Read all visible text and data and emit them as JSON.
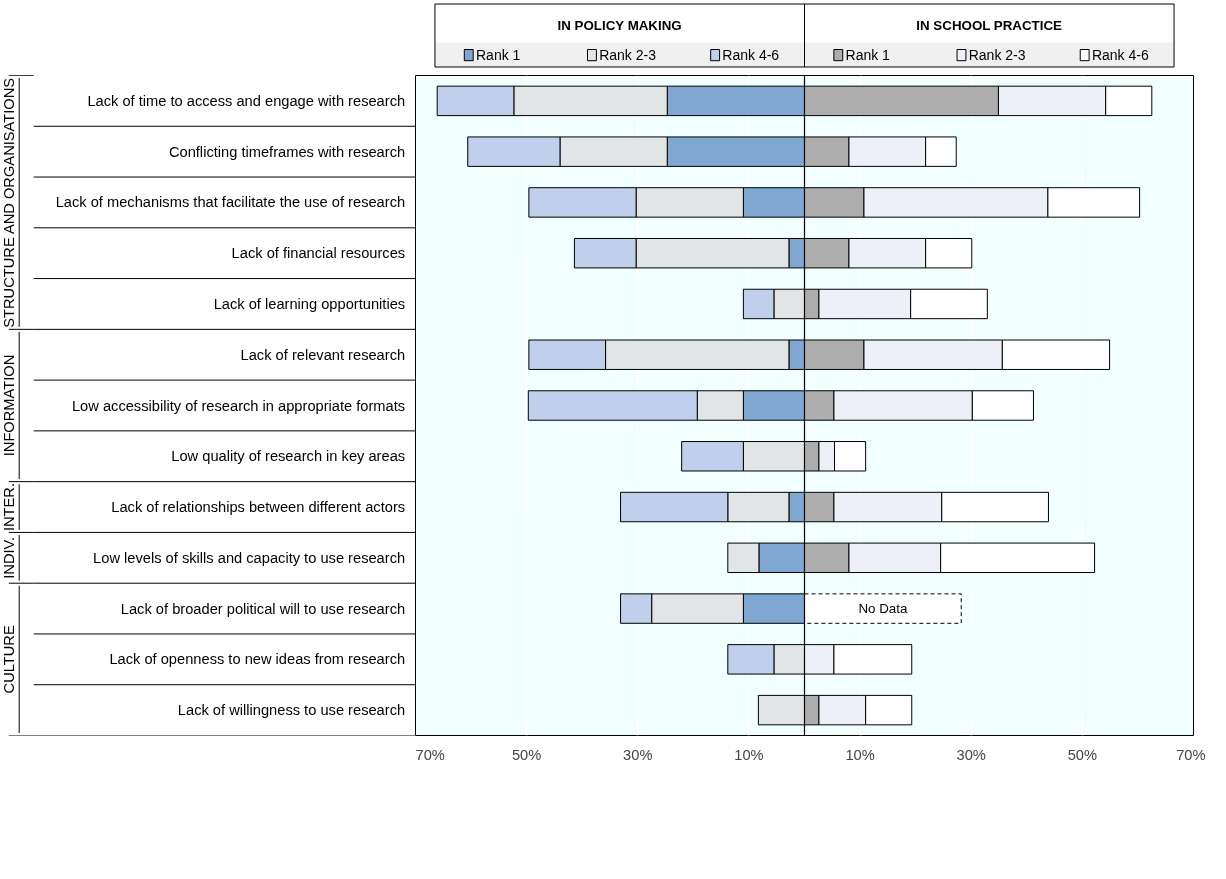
{
  "chart_data": {
    "type": "bar",
    "stacked": true,
    "orientation": "horizontal",
    "categories": [
      "Lack of time to access and engage with research",
      "Conflicting timeframes with research",
      "Lack of mechanisms that facilitate the use of research",
      "Lack of financial resources",
      "Lack of learning opportunities",
      "Lack of relevant research",
      "Low accessibility of research in appropriate formats",
      "Low quality of research in key areas",
      "Lack of relationships between different actors",
      "Low levels of skills and capacity to use research",
      "Lack of broader political will to use research",
      "Lack of openness to new ideas from research",
      "Lack of willingness to use research"
    ],
    "series": [
      {
        "name": "Rank 1",
        "color": "#7fa7d1",
        "values": [
          -24.7,
          -24.7,
          -11.0,
          -2.8,
          0,
          -2.8,
          -11.0,
          0,
          -2.8,
          -8.2,
          -11.0,
          0,
          0
        ]
      },
      {
        "name": "Rank 2-3",
        "color": "#e1e5e5",
        "values": [
          -27.6,
          -19.3,
          -19.3,
          -27.5,
          -5.5,
          -33.0,
          -8.3,
          -11.0,
          -11.0,
          -5.6,
          -16.5,
          -5.5,
          -8.3
        ]
      },
      {
        "name": "Rank 4-6",
        "color": "#bfcfec",
        "values": [
          -13.8,
          -16.6,
          -19.3,
          -11.1,
          -5.5,
          -13.8,
          -30.4,
          -11.1,
          -19.3,
          0,
          -5.6,
          -8.3,
          0
        ]
      },
      {
        "name": "Rank 1",
        "color": "#adadad",
        "values": [
          34.9,
          8.0,
          10.7,
          8.0,
          2.6,
          10.7,
          5.3,
          2.6,
          5.3,
          8.0,
          null,
          0,
          2.6
        ]
      },
      {
        "name": "Rank 2-3",
        "color": "#edf0f8",
        "values": [
          19.3,
          13.8,
          33.1,
          13.8,
          16.5,
          24.9,
          24.9,
          2.8,
          19.4,
          16.5,
          null,
          5.3,
          8.4
        ]
      },
      {
        "name": "Rank 4-6",
        "color": "#ffffff",
        "values": [
          8.3,
          5.5,
          16.5,
          8.3,
          13.8,
          19.3,
          11.0,
          5.6,
          19.2,
          27.7,
          null,
          14.0,
          8.3
        ]
      },
      {
        "name": "No Data",
        "color": "#ffffff",
        "line_style": "dashed",
        "values": [
          null,
          null,
          null,
          null,
          null,
          null,
          null,
          null,
          null,
          null,
          28.2,
          null,
          null
        ]
      }
    ],
    "xlim": [
      -70,
      70
    ],
    "xticks": [
      {
        "value": -70,
        "label": "70%"
      },
      {
        "value": -50,
        "label": "50%"
      },
      {
        "value": -30,
        "label": "30%"
      },
      {
        "value": -10,
        "label": "10%"
      },
      {
        "value": 10,
        "label": "10%"
      },
      {
        "value": 30,
        "label": "30%"
      },
      {
        "value": 50,
        "label": "50%"
      },
      {
        "value": 70,
        "label": "70%"
      }
    ],
    "grid": "x",
    "legend": "top",
    "ref_lines": [
      {
        "axis": "x",
        "value": 0,
        "color": "#000000"
      }
    ],
    "annotations": [
      "IN POLICY MAKING",
      "IN SCHOOL PRACTICE",
      "STRUCTURE AND ORGANISATIONS",
      "INFORMATION",
      "INTER.",
      "INDIV.",
      "CULTURE"
    ]
  }
}
